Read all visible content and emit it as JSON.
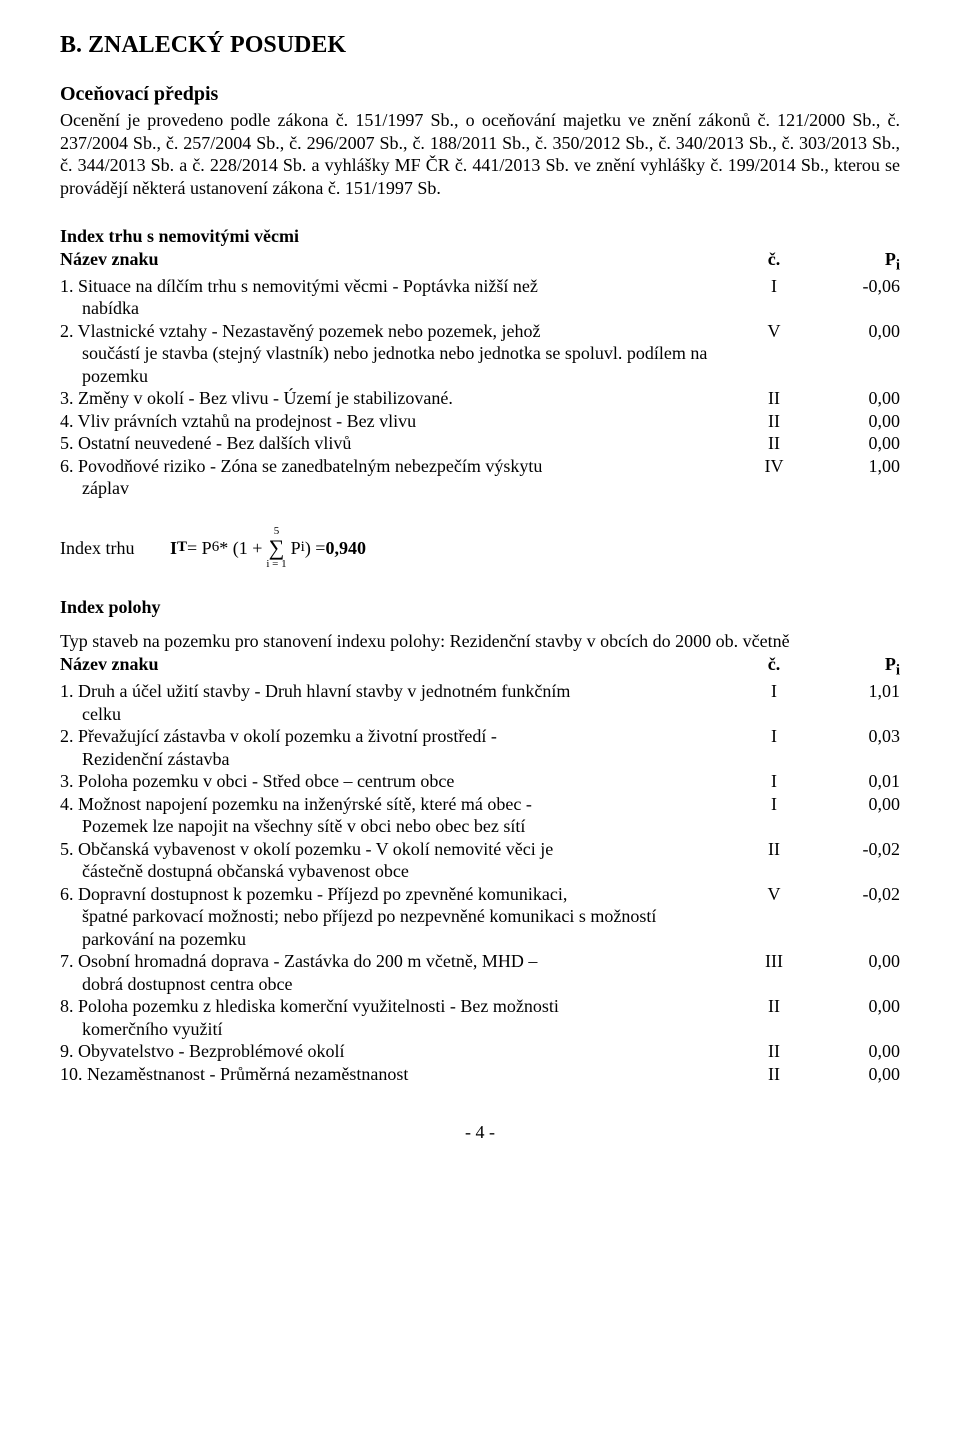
{
  "heading": "B. ZNALECKÝ POSUDEK",
  "section1_title": "Oceňovací předpis",
  "section1_body": "Ocenění je provedeno podle zákona č. 151/1997 Sb., o oceňování majetku ve znění zákonů č. 121/2000 Sb., č. 237/2004 Sb., č. 257/2004 Sb., č. 296/2007 Sb., č. 188/2011 Sb., č. 350/2012 Sb., č. 340/2013 Sb., č. 303/2013 Sb., č. 344/2013 Sb. a č. 228/2014 Sb. a vyhlášky MF ČR č. 441/2013 Sb. ve znění vyhlášky č. 199/2014 Sb., kterou se provádějí některá ustanovení zákona č. 151/1997 Sb.",
  "index_trhu_title": "Index trhu s nemovitými věcmi",
  "table_header": {
    "name": "Název znaku",
    "col_c": "č.",
    "col_p": "P",
    "col_p_sub": "i"
  },
  "trhu_rows": [
    {
      "n": "1.",
      "text": "Situace na dílčím trhu s nemovitými věcmi - Poptávka nižší než",
      "cont": "nabídka",
      "c": "I",
      "p": "-0,06"
    },
    {
      "n": "2.",
      "text": "Vlastnické vztahy - Nezastavěný pozemek nebo pozemek, jehož",
      "cont": "součástí je stavba (stejný vlastník) nebo jednotka nebo jednotka se spoluvl. podílem na pozemku",
      "c": "V",
      "p": "0,00"
    },
    {
      "n": "3.",
      "text": "Změny v okolí - Bez vlivu - Území je stabilizované.",
      "c": "II",
      "p": "0,00"
    },
    {
      "n": "4.",
      "text": "Vliv právních vztahů na prodejnost - Bez vlivu",
      "c": "II",
      "p": "0,00"
    },
    {
      "n": "5.",
      "text": "Ostatní neuvedené - Bez dalších vlivů",
      "c": "II",
      "p": "0,00"
    },
    {
      "n": "6.",
      "text": "Povodňové riziko - Zóna se zanedbatelným nebezpečím výskytu",
      "cont": "záplav",
      "c": "IV",
      "p": "1,00"
    }
  ],
  "formula": {
    "label": "Index trhu",
    "lhs": "I",
    "lhs_sub": "T",
    "eq1": " = P",
    "p6_sub": "6",
    "mid": " * (1 + ",
    "sum_top": "5",
    "sum_bot": "i = 1",
    "inner": " P",
    "pi_sub": "i",
    "close": ") = ",
    "result": "0,940"
  },
  "index_polohy_title": "Index polohy",
  "polohy_intro": "Typ staveb na pozemku pro stanovení indexu polohy: Rezidenční stavby v obcích do 2000 ob. včetně",
  "polohy_rows": [
    {
      "n": "1.",
      "text": "Druh a účel užití stavby - Druh hlavní stavby v jednotném funkčním",
      "cont": "celku",
      "c": "I",
      "p": "1,01"
    },
    {
      "n": "2.",
      "text": "Převažující zástavba v okolí pozemku a životní prostředí -",
      "cont": "Rezidenční zástavba",
      "c": "I",
      "p": "0,03"
    },
    {
      "n": "3.",
      "text": "Poloha pozemku v obci - Střed obce – centrum obce",
      "c": "I",
      "p": "0,01"
    },
    {
      "n": "4.",
      "text": "Možnost napojení pozemku na inženýrské sítě, které má obec -",
      "cont": "Pozemek lze napojit na všechny sítě v obci nebo obec bez sítí",
      "c": "I",
      "p": "0,00"
    },
    {
      "n": "5.",
      "text": "Občanská vybavenost v okolí pozemku - V okolí nemovité věci je",
      "cont": "částečně dostupná občanská vybavenost obce",
      "c": "II",
      "p": "-0,02"
    },
    {
      "n": "6.",
      "text": "Dopravní dostupnost k pozemku - Příjezd po zpevněné komunikaci,",
      "cont": "špatné parkovací možnosti; nebo příjezd po nezpevněné komunikaci s možností parkování na pozemku",
      "c": "V",
      "p": "-0,02"
    },
    {
      "n": "7.",
      "text": "Osobní hromadná doprava - Zastávka do 200 m včetně, MHD –",
      "cont": "dobrá dostupnost centra obce",
      "c": "III",
      "p": "0,00"
    },
    {
      "n": "8.",
      "text": "Poloha pozemku z hlediska komerční využitelnosti - Bez možnosti",
      "cont": "komerčního využití",
      "c": "II",
      "p": "0,00"
    },
    {
      "n": "9.",
      "text": "Obyvatelstvo - Bezproblémové okolí",
      "c": "II",
      "p": "0,00"
    },
    {
      "n": "10.",
      "text": "Nezaměstnanost - Průměrná nezaměstnanost",
      "c": "II",
      "p": "0,00"
    }
  ],
  "footer": "- 4 -"
}
